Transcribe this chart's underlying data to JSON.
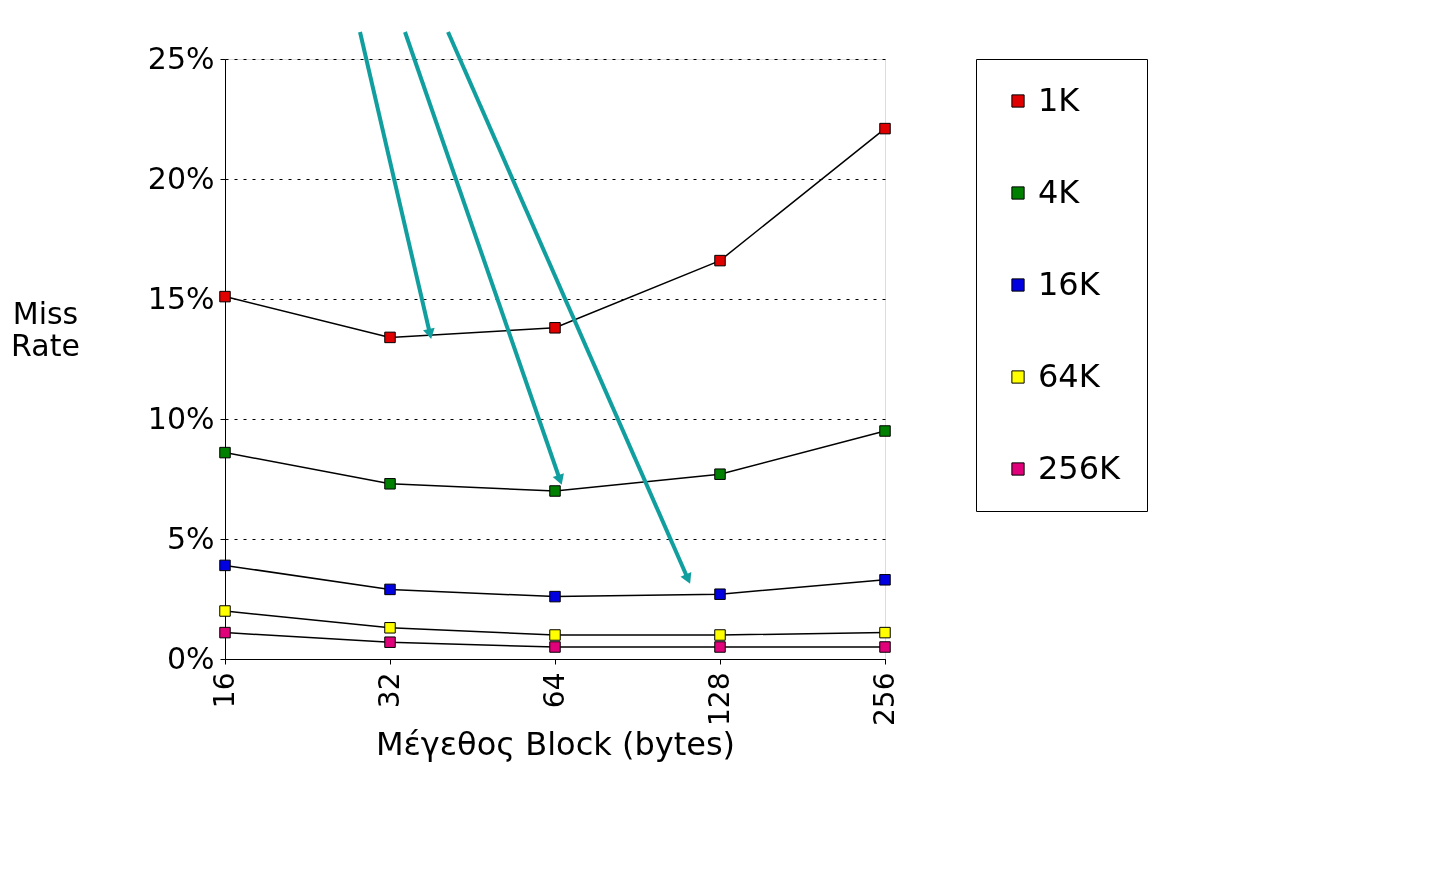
{
  "chart_data": {
    "type": "line",
    "xlabel": "Μέγεθος Block (bytes)",
    "ylabel": "Miss Rate",
    "categories": [
      "16",
      "32",
      "64",
      "128",
      "256"
    ],
    "series": [
      {
        "name": "1K",
        "color": "#e00000",
        "values": [
          15.1,
          13.4,
          13.8,
          16.6,
          22.1
        ]
      },
      {
        "name": "4K",
        "color": "#008000",
        "values": [
          8.6,
          7.3,
          7.0,
          7.7,
          9.5
        ]
      },
      {
        "name": "16K",
        "color": "#0000e0",
        "values": [
          3.9,
          2.9,
          2.6,
          2.7,
          3.3
        ]
      },
      {
        "name": "64K",
        "color": "#ffff00",
        "values": [
          2.0,
          1.3,
          1.0,
          1.0,
          1.1
        ]
      },
      {
        "name": "256K",
        "color": "#e0007a",
        "values": [
          1.1,
          0.7,
          0.5,
          0.5,
          0.5
        ]
      }
    ],
    "ylim": [
      0,
      25
    ],
    "yticks": [
      {
        "value": 0,
        "label": "0%"
      },
      {
        "value": 5,
        "label": "5%"
      },
      {
        "value": 10,
        "label": "10%"
      },
      {
        "value": 15,
        "label": "15%"
      },
      {
        "value": 20,
        "label": "20%"
      },
      {
        "value": 25,
        "label": "25%"
      }
    ],
    "grid": "y",
    "legend": "right",
    "marker": "square",
    "line_style": "solid"
  }
}
